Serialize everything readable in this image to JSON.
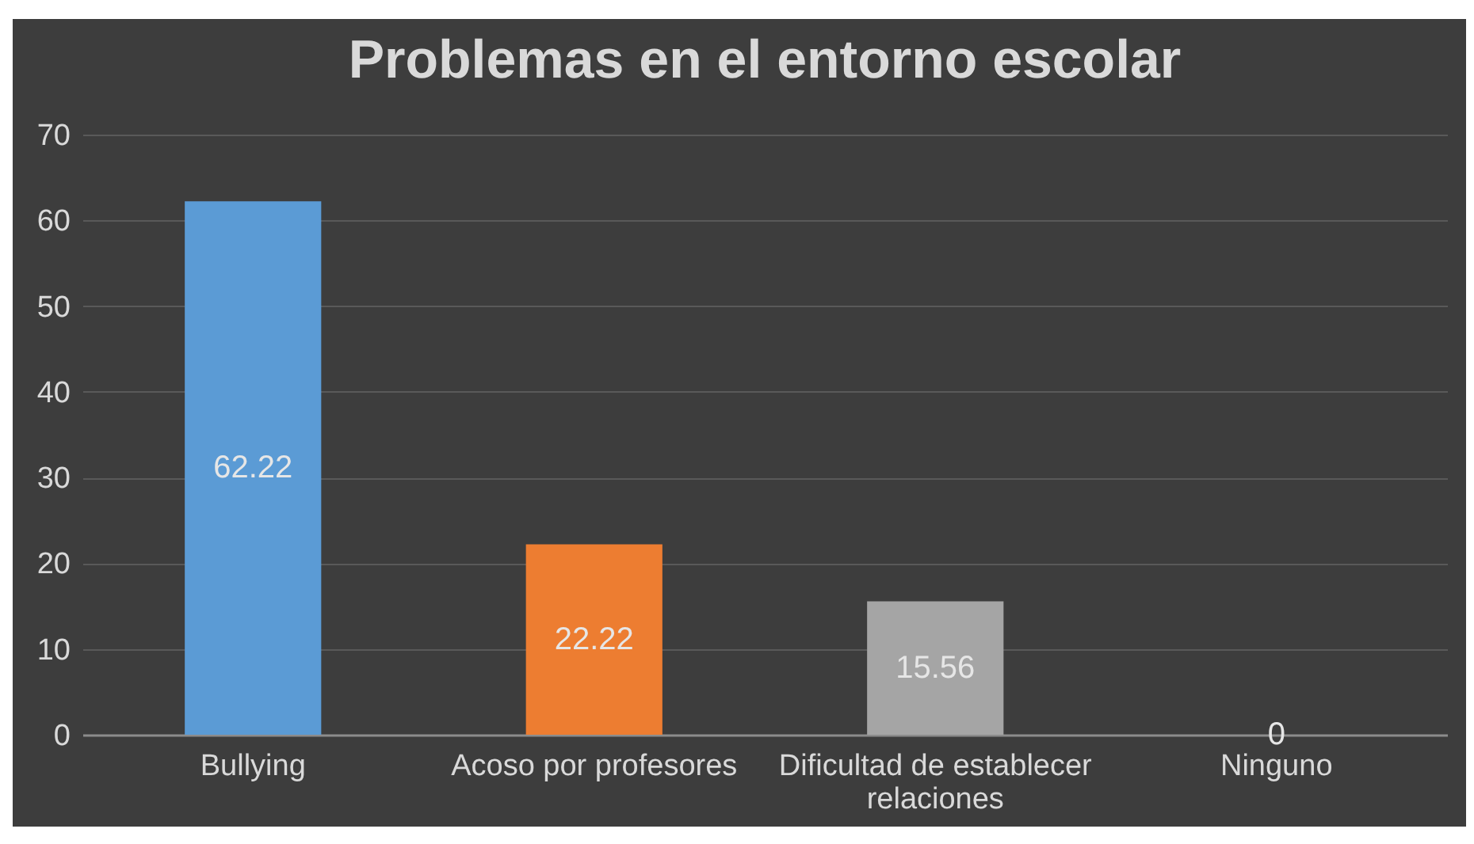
{
  "chart_data": {
    "type": "bar",
    "title": "Problemas en el entorno escolar",
    "categories": [
      "Bullying",
      "Acoso por profesores",
      "Dificultad de establecer relaciones",
      "Ninguno"
    ],
    "values": [
      62.22,
      22.22,
      15.56,
      0
    ],
    "colors": [
      "#5b9bd5",
      "#ed7d31",
      "#a5a5a5",
      "#ffc000"
    ],
    "ylim": [
      0,
      70
    ],
    "yticks": [
      0,
      10,
      20,
      30,
      40,
      50,
      60,
      70
    ],
    "grid": "y",
    "data_labels": true
  }
}
